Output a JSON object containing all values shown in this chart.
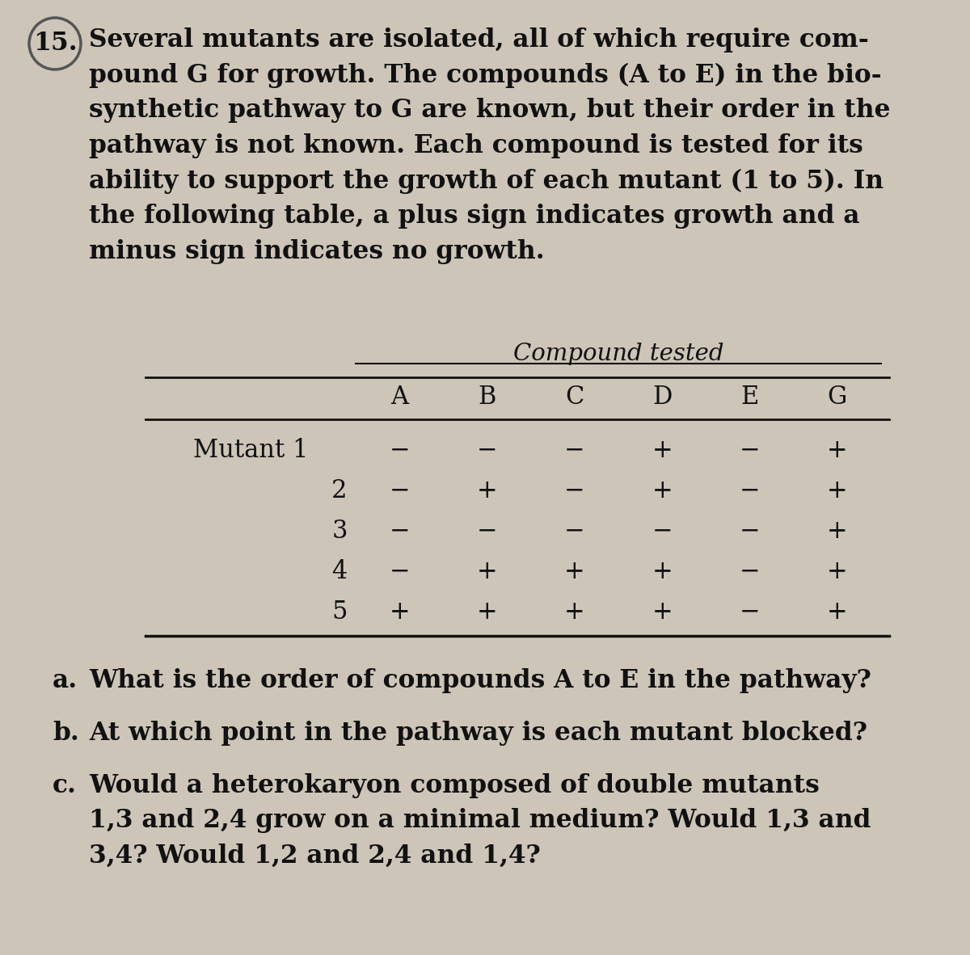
{
  "question_number": "15.",
  "wrapped_paragraph": "Several mutants are isolated, all of which require com-\npound G for growth. The compounds (A to E) in the bio-\nsynthetic pathway to G are known, but their order in the\npathway is not known. Each compound is tested for its\nability to support the growth of each mutant (1 to 5). In\nthe following table, a plus sign indicates growth and a\nminus sign indicates no growth.",
  "table_title": "Compound tested",
  "columns": [
    "A",
    "B",
    "C",
    "D",
    "E",
    "G"
  ],
  "row_labels": [
    "Mutant 1",
    "2",
    "3",
    "4",
    "5"
  ],
  "table_data": [
    [
      "−",
      "−",
      "−",
      "+",
      "−",
      "+"
    ],
    [
      "−",
      "+",
      "−",
      "+",
      "−",
      "+"
    ],
    [
      "−",
      "−",
      "−",
      "−",
      "−",
      "+"
    ],
    [
      "−",
      "+",
      "+",
      "+",
      "−",
      "+"
    ],
    [
      "+",
      "+",
      "+",
      "+",
      "−",
      "+"
    ]
  ],
  "part_a_label": "a.",
  "part_a_text": "What is the order of compounds A to E in the pathway?",
  "part_b_label": "b.",
  "part_b_text": "At which point in the pathway is each mutant blocked?",
  "part_c_label": "c.",
  "part_c_text": "Would a heterokaryon composed of double mutants\n1,3 and 2,4 grow on a minimal medium? Would 1,3 and\n3,4? Would 1,2 and 2,4 and 1,4?",
  "bg_color": "#cdc5b8",
  "text_color": "#111111",
  "circle_color": "#555555",
  "para_fontsize": 22.5,
  "qnum_fontsize": 22.5,
  "table_title_fontsize": 21,
  "col_header_fontsize": 22,
  "table_data_fontsize": 22,
  "row_label_fontsize": 22,
  "parts_fontsize": 22.5,
  "parts_label_fontsize": 22.5
}
